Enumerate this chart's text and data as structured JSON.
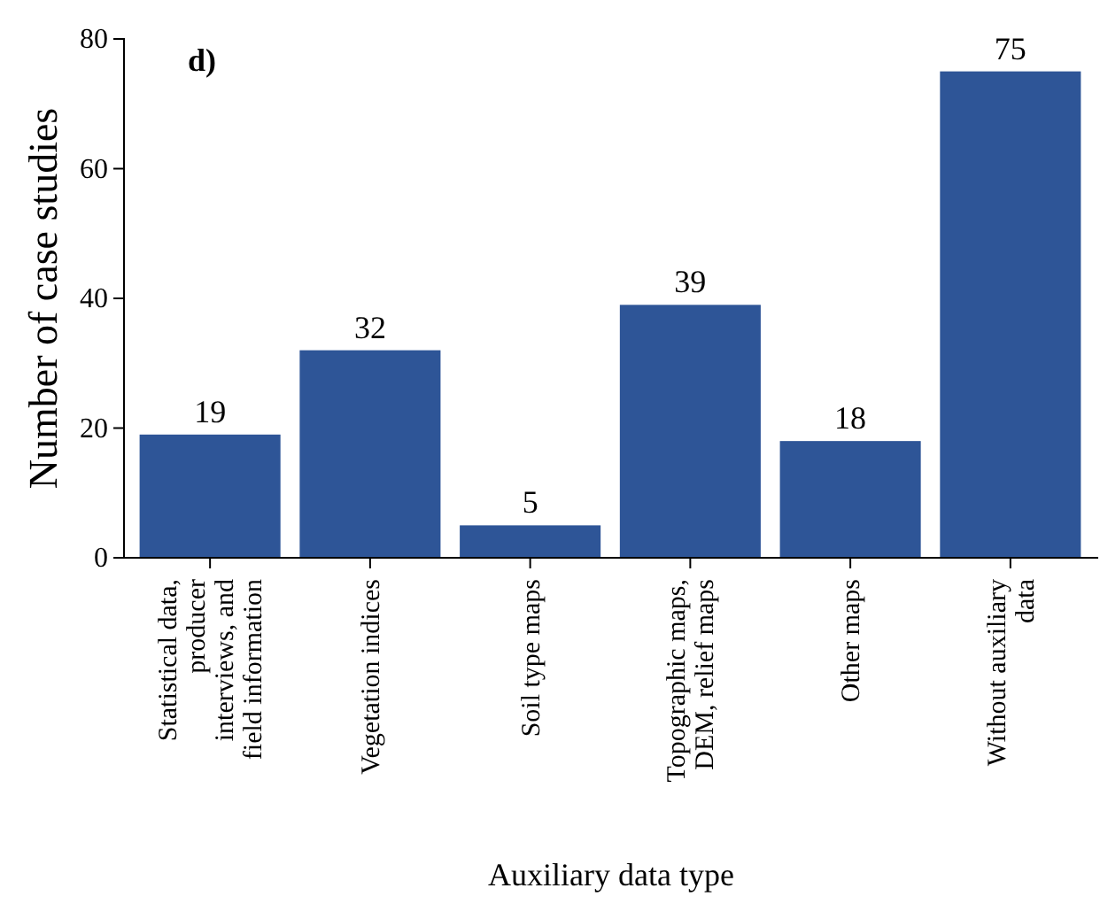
{
  "chart_data": {
    "type": "bar",
    "categories": [
      "Statistical data, producer interviews, and field information",
      "Vegetation indices",
      "Soil type maps",
      "Topographic maps, DEM, relief maps",
      "Other maps",
      "Without auxiliary data"
    ],
    "values": [
      19,
      32,
      5,
      39,
      18,
      75
    ],
    "color": "#2e5597",
    "ylim": [
      0,
      80
    ],
    "yticks": [
      0,
      20,
      40,
      60,
      80
    ],
    "xlabel": "Auxiliary data type",
    "ylabel": "Number of case studies",
    "annotations": [
      "d)"
    ],
    "data_labels": true
  }
}
